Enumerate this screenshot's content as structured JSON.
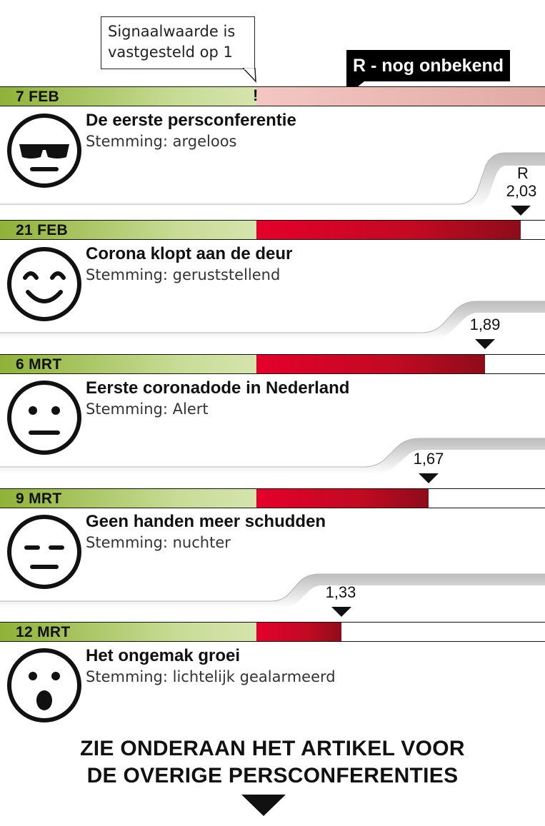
{
  "header": {
    "callout_line1": "Signaalwaarde is",
    "callout_line2": "vastgesteld op 1",
    "r_unknown_label": "R - nog onbekend",
    "signal_marker": "!"
  },
  "r_axis_label": "R",
  "timeline": [
    {
      "date": "7 FEB",
      "title": "De eerste persconferentie",
      "mood": "Stemming: argeloos",
      "face": "sunglasses-face-icon",
      "r": "2,03",
      "r_value": 2.03,
      "bar_known": false
    },
    {
      "date": "21 FEB",
      "title": "Corona klopt aan de deur",
      "mood": "Stemming: geruststellend",
      "face": "smiling-face-icon",
      "r": "1,89",
      "r_value": 1.89,
      "bar_known": true
    },
    {
      "date": "6 MRT",
      "title": "Eerste coronadode in Nederland",
      "mood": "Stemming: Alert",
      "face": "neutral-face-icon",
      "r": "1,67",
      "r_value": 1.67,
      "bar_known": true
    },
    {
      "date": "9 MRT",
      "title": "Geen handen meer schudden",
      "mood": "Stemming: nuchter",
      "face": "expressionless-face-icon",
      "r": "1,33",
      "r_value": 1.33,
      "bar_known": true
    },
    {
      "date": "12 MRT",
      "title": "Het ongemak groei",
      "mood": "Stemming: lichtelijk gealarmeerd",
      "face": "surprised-face-icon",
      "r_value": 1.33,
      "bar_known": true
    }
  ],
  "footer": {
    "line1": "ZIE ONDERAAN HET ARTIKEL VOOR",
    "line2": "DE OVERIGE PERSCONFERENTIES"
  },
  "colors": {
    "green_start": "#8fb238",
    "green_end": "#d6e4ae",
    "red_start": "#e4002b",
    "red_end": "#8e0c1a",
    "pink_unknown": "#f4c7c3"
  }
}
